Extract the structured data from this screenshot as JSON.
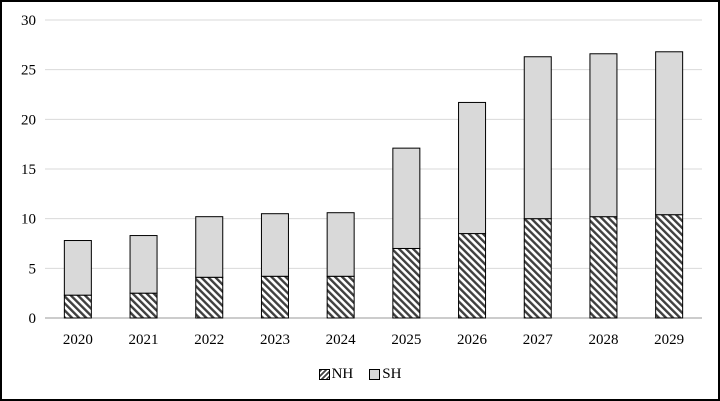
{
  "chart_data": {
    "type": "bar",
    "stacked": true,
    "categories": [
      "2020",
      "2021",
      "2022",
      "2023",
      "2024",
      "2025",
      "2026",
      "2027",
      "2028",
      "2029"
    ],
    "series": [
      {
        "name": "NH",
        "values": [
          2.3,
          2.5,
          4.1,
          4.2,
          4.2,
          7.0,
          8.5,
          10.0,
          10.2,
          10.4
        ],
        "pattern": "diagonal-hatch",
        "color": "#404040"
      },
      {
        "name": "SH",
        "values": [
          5.5,
          5.8,
          6.1,
          6.3,
          6.4,
          10.1,
          13.2,
          16.3,
          16.4,
          16.4
        ],
        "color": "#d9d9d9"
      }
    ],
    "yticks": [
      "0",
      "5",
      "10",
      "15",
      "20",
      "25",
      "30"
    ],
    "ylim": [
      0,
      30
    ],
    "grid": true,
    "legend_position": "bottom"
  }
}
